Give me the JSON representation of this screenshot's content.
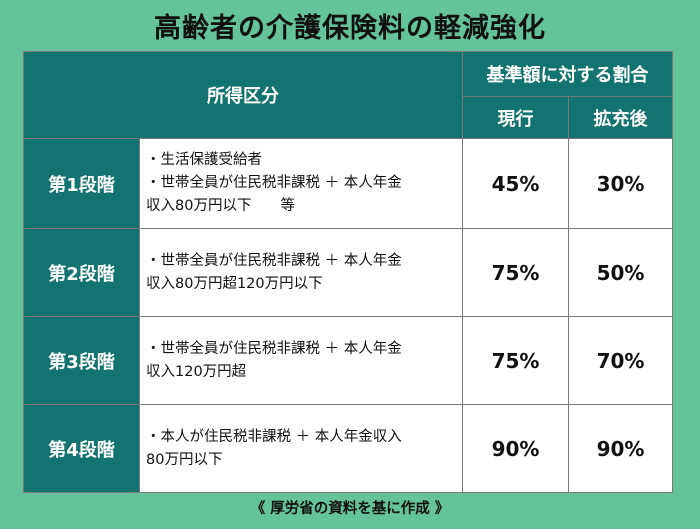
{
  "title": "高齢者の介護保険料の軽減強化",
  "header": {
    "category": "所得区分",
    "ratio_group": "基準額に対する割合",
    "current": "現行",
    "expanded": "拡充後"
  },
  "rows": [
    {
      "stage": "第1段階",
      "lines": [
        "・生活保護受給者",
        "・世帯全員が住民税非課税 ＋ 本人年金",
        "収入80万円以下　　等"
      ],
      "current": "45%",
      "expanded": "30%"
    },
    {
      "stage": "第2段階",
      "lines": [
        "・世帯全員が住民税非課税 ＋ 本人年金",
        "収入80万円超120万円以下"
      ],
      "current": "75%",
      "expanded": "50%"
    },
    {
      "stage": "第3段階",
      "lines": [
        "・世帯全員が住民税非課税 ＋ 本人年金",
        "収入120万円超"
      ],
      "current": "75%",
      "expanded": "70%"
    },
    {
      "stage": "第4段階",
      "lines": [
        "・本人が住民税非課税 ＋ 本人年金収入",
        "80万円以下"
      ],
      "current": "90%",
      "expanded": "90%"
    }
  ],
  "source": "《 厚労省の資料を基に作成 》"
}
